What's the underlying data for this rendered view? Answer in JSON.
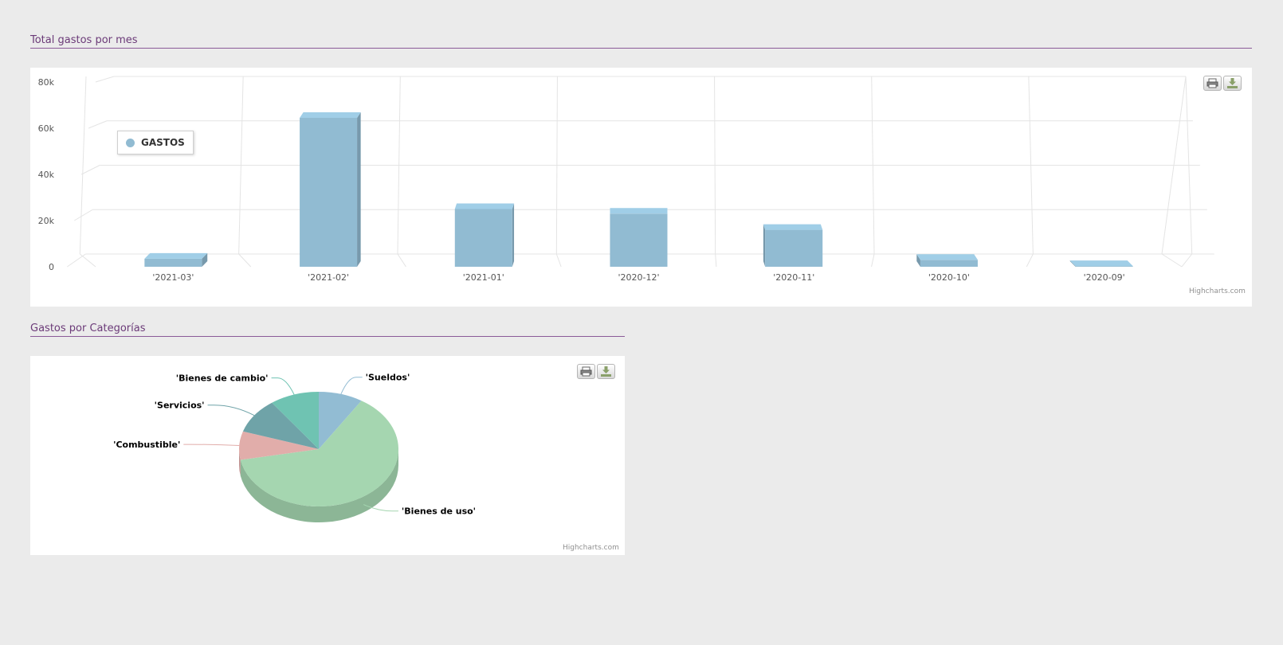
{
  "sections": {
    "monthly_title": "Total gastos por mes",
    "category_title": "Gastos por Categorías"
  },
  "export": {
    "print_icon": "printer-icon",
    "download_icon": "download-icon"
  },
  "credits": "Highcharts.com",
  "chart_data": [
    {
      "type": "bar",
      "title": "",
      "categories": [
        "'2021-03'",
        "'2021-02'",
        "'2021-01'",
        "'2020-12'",
        "'2020-11'",
        "'2020-10'",
        "'2020-09'"
      ],
      "series": [
        {
          "name": "GASTOS",
          "color": "#91bbd2",
          "values": [
            3500,
            64500,
            25000,
            23000,
            16000,
            3000,
            300
          ]
        }
      ],
      "ylim": [
        0,
        80000
      ],
      "yticks": [
        0,
        20000,
        40000,
        60000,
        80000
      ],
      "ytick_labels": [
        "0",
        "20k",
        "40k",
        "60k",
        "80k"
      ],
      "grid": true,
      "legend_position": "top-left",
      "style": "3d-column"
    },
    {
      "type": "pie",
      "title": "",
      "slices": [
        {
          "label": "'Sueldos'",
          "value": 9,
          "color": "#92bcd3"
        },
        {
          "label": "'Bienes de uso'",
          "value": 63,
          "color": "#a5d6b0"
        },
        {
          "label": "'Combustible'",
          "value": 8,
          "color": "#e1adaa"
        },
        {
          "label": "'Servicios'",
          "value": 10,
          "color": "#6fa3a8"
        },
        {
          "label": "'Bienes de cambio'",
          "value": 10,
          "color": "#6fc3b2"
        }
      ],
      "style": "3d-pie"
    }
  ]
}
